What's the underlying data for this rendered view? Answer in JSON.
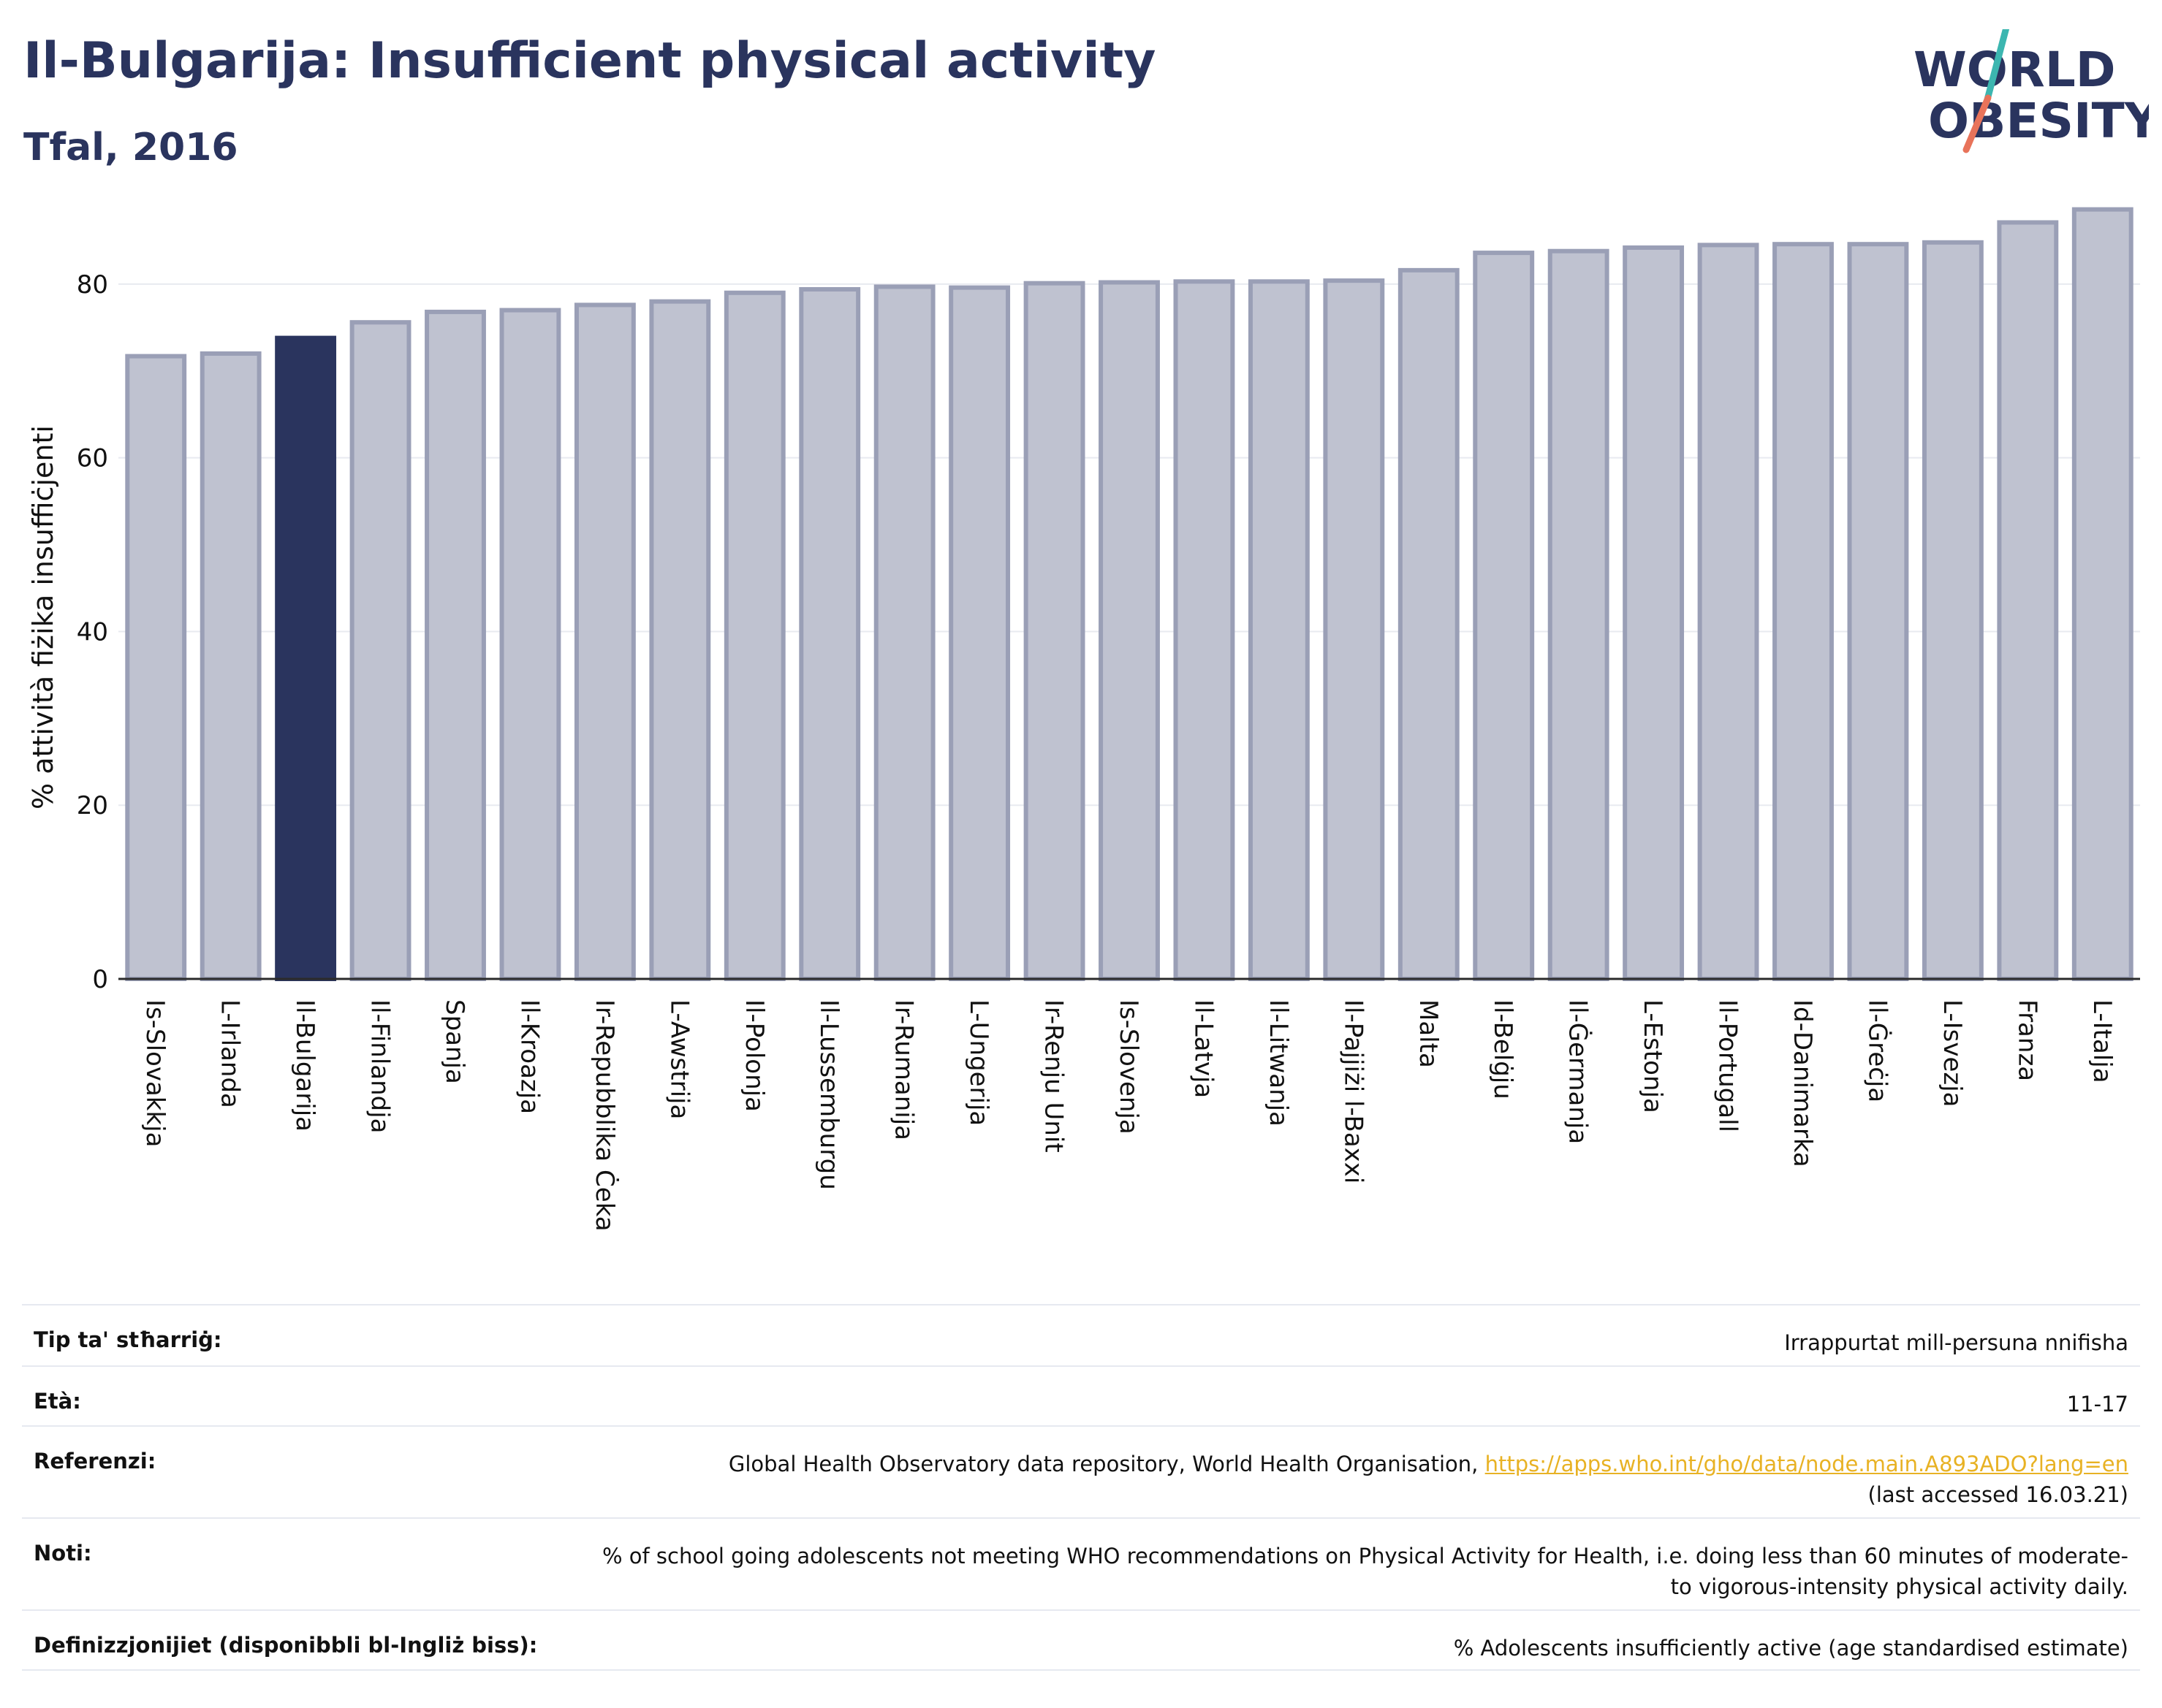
{
  "header": {
    "title": "Il-Bulgarija: Insufficient physical activity",
    "subtitle": "Tfal, 2016"
  },
  "logo": {
    "line1": "WORLD",
    "line2": "OBESITY",
    "colors": {
      "text": "#2a345e",
      "slash_top": "#3cb6b0",
      "slash_bottom": "#e8735a"
    }
  },
  "colors": {
    "highlight_bar": "#2a345e",
    "bar_fill": "#bfc2d0",
    "bar_stroke": "#9a9fb6",
    "link": "#e8b224"
  },
  "chart_data": {
    "type": "bar",
    "ylabel": "% attività fiżika insuffiċjenti",
    "ylim": [
      0,
      90
    ],
    "yticks": [
      0,
      20,
      40,
      60,
      80
    ],
    "grid": true,
    "highlight": "Il-Bulgarija",
    "categories": [
      "Is-Slovakkja",
      "L-Irlanda",
      "Il-Bulgarija",
      "Il-Finlandja",
      "Spanja",
      "Il-Kroazja",
      "Ir-Repubblika Ċeka",
      "L-Awstrija",
      "Il-Polonja",
      "Il-Lussemburgu",
      "Ir-Rumanija",
      "L-Ungerija",
      "Ir-Renju Unit",
      "Is-Slovenja",
      "Il-Latvja",
      "Il-Litwanja",
      "Il-Pajjiżi l-Baxxi",
      "Malta",
      "Il-Belġju",
      "Il-Ġermanja",
      "L-Estonja",
      "Il-Portugall",
      "Id-Danimarka",
      "Il-Ġreċja",
      "L-Isvezja",
      "Franza",
      "L-Italja"
    ],
    "values": [
      71.7,
      72.0,
      73.8,
      75.6,
      76.8,
      77.0,
      77.6,
      78.0,
      79.0,
      79.4,
      79.7,
      79.6,
      80.1,
      80.2,
      80.3,
      80.3,
      80.4,
      81.6,
      83.6,
      83.8,
      84.2,
      84.5,
      84.6,
      84.6,
      84.8,
      87.1,
      88.6
    ]
  },
  "info": [
    {
      "label": "Tip ta' stħarriġ:",
      "value": "Irrappurtat mill-persuna nnifisha"
    },
    {
      "label": "Età:",
      "value": "11-17"
    },
    {
      "label": "Referenzi:",
      "value": "Global Health Observatory data repository, World Health Organisation, ",
      "link": "https://apps.who.int/gho/data/node.main.A893ADO?lang=en",
      "value_after": "(last accessed 16.03.21)"
    },
    {
      "label": "Noti:",
      "value": "% of school going adolescents not meeting WHO recommendations on Physical Activity for Health, i.e. doing less than 60 minutes of moderate- to vigorous-intensity physical activity daily."
    },
    {
      "label": "Definizzjonijiet (disponibbli bl-Ingliż biss):",
      "value": "% Adolescents insufficiently active (age standardised estimate)"
    }
  ]
}
